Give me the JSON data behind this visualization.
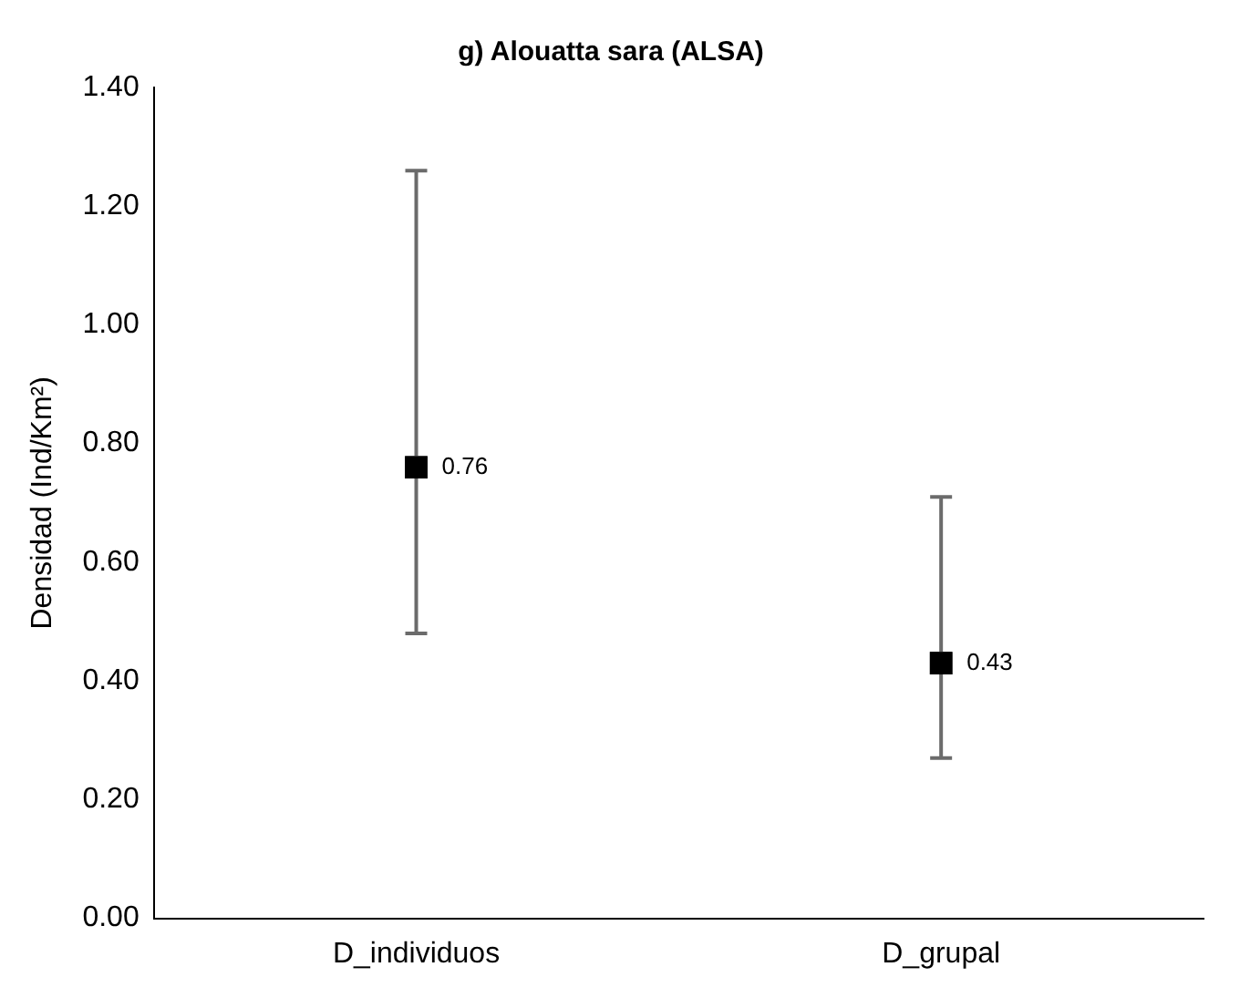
{
  "chart_data": {
    "type": "scatter",
    "title": "g) Alouatta sara (ALSA)",
    "ylabel": "Densidad (Ind/Km²)",
    "categories": [
      "D_individuos",
      "D_grupal"
    ],
    "values": [
      0.76,
      0.43
    ],
    "errors": [
      [
        0.48,
        1.26
      ],
      [
        0.27,
        0.71
      ]
    ],
    "color": "#000000",
    "marker": "square",
    "data_labels": true,
    "grid": false,
    "legend": false,
    "ylim": [
      0,
      1.4
    ],
    "yticks": [
      {
        "value": 0,
        "label": "0.00"
      },
      {
        "value": 0.2,
        "label": "0.20"
      },
      {
        "value": 0.4,
        "label": "0.40"
      },
      {
        "value": 0.6,
        "label": "0.60"
      },
      {
        "value": 0.8,
        "label": "0.80"
      },
      {
        "value": 1.0,
        "label": "1.00"
      },
      {
        "value": 1.2,
        "label": "1.20"
      },
      {
        "value": 1.4,
        "label": "1.40"
      }
    ]
  }
}
